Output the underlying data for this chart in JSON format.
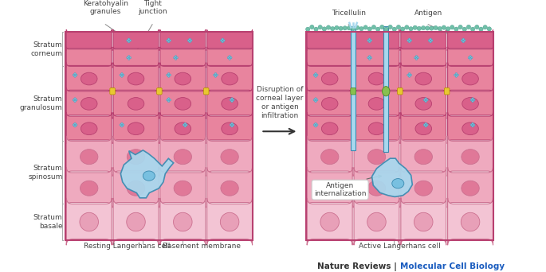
{
  "fig_width": 6.85,
  "fig_height": 3.42,
  "bg_color": "#ffffff",
  "sc_dark": "#d9608a",
  "sc_mid": "#e8849e",
  "sg_col": "#e8849e",
  "sg_nuc": "#d9608a",
  "ss_col": "#efaabf",
  "ss_nuc": "#e07898",
  "sb_col": "#f3c4d4",
  "sb_nuc": "#e8a0b8",
  "border_sc": "#b84070",
  "border_sg": "#b84070",
  "border_ss": "#cc7090",
  "border_sb": "#cc7090",
  "lc_fill": "#a8d8ee",
  "lc_border": "#3a8ab0",
  "lc_nuc_fill": "#78c0e0",
  "granule_col": "#78c0d8",
  "granule_edge": "#4898b8",
  "tj_yellow": "#e8c830",
  "tj_yellow_edge": "#b09000",
  "tj_green": "#88c050",
  "tj_green_edge": "#508820",
  "surface_teal": "#70c0a8",
  "surface_teal_edge": "#409888",
  "arrow_col": "#333333",
  "label_col": "#444444",
  "journal_black": "#333333",
  "journal_blue": "#1a5cbf",
  "stratum_labels": [
    "Stratum\ncorneum",
    "Stratum\ngranulosum",
    "Stratum\nspinosum",
    "Stratum\nbasale"
  ],
  "bottom_left1": "Resting Langerhans cell",
  "bottom_left2": "Basement membrane",
  "bottom_right": "Active Langerhans cell",
  "top_left1": "Keratohyalin\ngranules",
  "top_left2": "Tight\njunction",
  "top_right1": "Tricellulin",
  "top_right2": "Antigen",
  "mid_text1": "Disruption of",
  "mid_text2": "corneal layer",
  "mid_text3": "or antigen",
  "mid_text4": "infiltration",
  "antigen_box": "Antigen\ninternalization",
  "journal_t1": "Nature Reviews",
  "journal_t2": "Molecular Cell Biology"
}
